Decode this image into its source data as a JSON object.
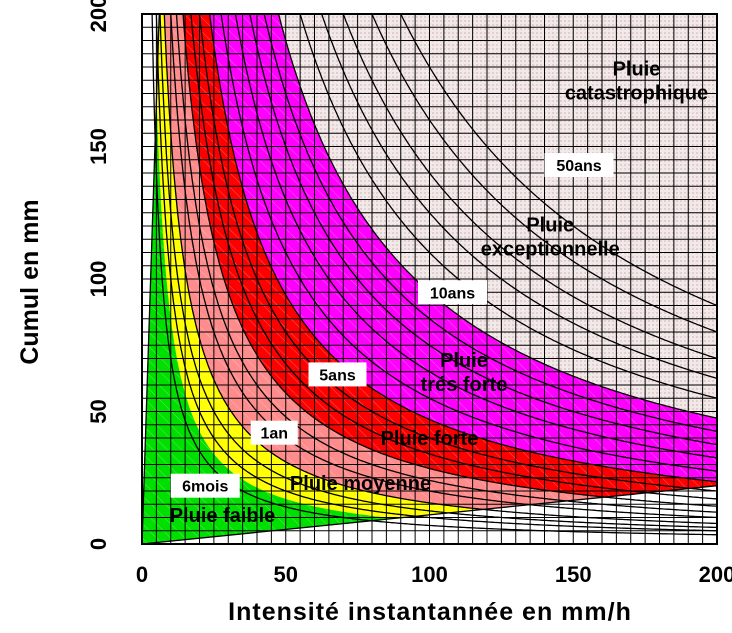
{
  "chart_data": {
    "type": "area",
    "xlabel": "Intensité instantannée en mm/h",
    "ylabel": "Cumul en mm",
    "xlim": [
      0,
      200
    ],
    "ylim": [
      0,
      200
    ],
    "x_ticks": [
      "0",
      "50",
      "100",
      "150",
      "200"
    ],
    "y_ticks": [
      "0",
      "50",
      "100",
      "150",
      "200"
    ],
    "grid": true,
    "zones": [
      {
        "name": "Pluie faible",
        "color": "#00e000",
        "label": "Pluie faible",
        "label_at": [
          28,
          11
        ]
      },
      {
        "name": "Pluie moyenne",
        "color": "#ffff00",
        "label": "Pluie moyenne",
        "label_at": [
          76,
          23
        ]
      },
      {
        "name": "Pluie forte",
        "color": "#ff8c8c",
        "label": "Pluie forte",
        "label_at": [
          100,
          40
        ]
      },
      {
        "name": "Pluie trés forte",
        "color": "#ff0000",
        "label": [
          "Pluie",
          "trés forte"
        ],
        "label_at": [
          112,
          65
        ]
      },
      {
        "name": "Pluie exceptionnelle",
        "color": "#ff00ff",
        "label": [
          "Pluie",
          "exceptionnelle"
        ],
        "label_at": [
          142,
          116
        ]
      },
      {
        "name": "Pluie catastrophique",
        "color": "#f2e8e8",
        "label": [
          "Pluie",
          "catastrophique"
        ],
        "label_at": [
          172,
          175
        ]
      }
    ],
    "return_periods": [
      {
        "label": "6mois",
        "k": 850,
        "label_at": [
          22,
          22
        ]
      },
      {
        "label": "1an",
        "k": 1550,
        "label_at": [
          46,
          42
        ]
      },
      {
        "label": "5ans",
        "k": 2850,
        "label_at": [
          68,
          64
        ]
      },
      {
        "label": "10ans",
        "k": 4700,
        "label_at": [
          108,
          95
        ]
      },
      {
        "label": "50ans",
        "k": 9500,
        "label_at": [
          152,
          143
        ]
      }
    ]
  }
}
